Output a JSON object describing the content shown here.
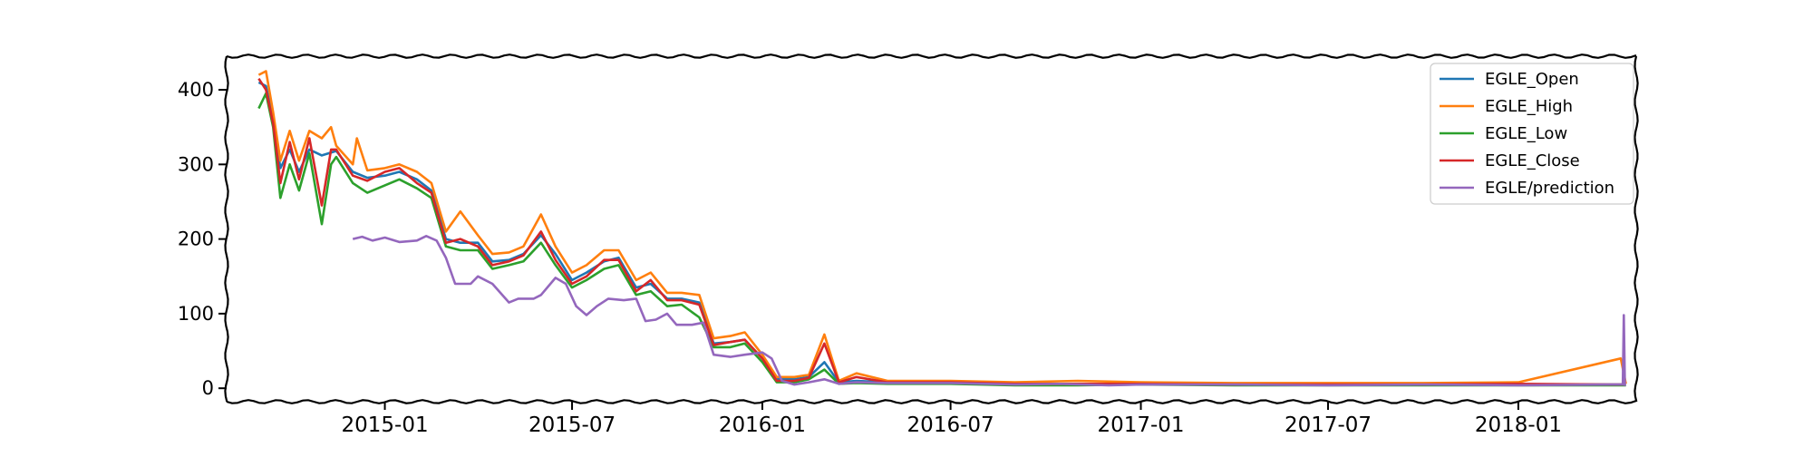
{
  "chart_data": {
    "type": "line",
    "title": "",
    "xlabel": "",
    "ylabel": "",
    "xlim": [
      "2014-08-01",
      "2018-04-25"
    ],
    "ylim": [
      -18,
      445
    ],
    "grid": false,
    "legend_position": "top-right",
    "x_ticks": [
      "2015-01",
      "2015-07",
      "2016-01",
      "2016-07",
      "2017-01",
      "2017-07",
      "2018-01"
    ],
    "y_ticks": [
      0,
      100,
      200,
      300,
      400
    ],
    "series": [
      {
        "name": "EGLE_Open",
        "color": "#1f77b4",
        "points": [
          [
            "2014-09-01",
            410
          ],
          [
            "2014-09-08",
            405
          ],
          [
            "2014-09-15",
            360
          ],
          [
            "2014-09-22",
            295
          ],
          [
            "2014-10-01",
            320
          ],
          [
            "2014-10-10",
            290
          ],
          [
            "2014-10-20",
            320
          ],
          [
            "2014-11-01",
            312
          ],
          [
            "2014-11-15",
            318
          ],
          [
            "2014-12-01",
            290
          ],
          [
            "2014-12-15",
            282
          ],
          [
            "2015-01-01",
            285
          ],
          [
            "2015-01-15",
            290
          ],
          [
            "2015-02-01",
            280
          ],
          [
            "2015-02-15",
            265
          ],
          [
            "2015-03-01",
            200
          ],
          [
            "2015-03-15",
            195
          ],
          [
            "2015-04-01",
            195
          ],
          [
            "2015-04-15",
            170
          ],
          [
            "2015-05-01",
            172
          ],
          [
            "2015-05-15",
            180
          ],
          [
            "2015-06-01",
            205
          ],
          [
            "2015-06-15",
            180
          ],
          [
            "2015-07-01",
            145
          ],
          [
            "2015-07-15",
            155
          ],
          [
            "2015-08-01",
            170
          ],
          [
            "2015-08-15",
            175
          ],
          [
            "2015-09-01",
            135
          ],
          [
            "2015-09-15",
            140
          ],
          [
            "2015-10-01",
            120
          ],
          [
            "2015-10-15",
            120
          ],
          [
            "2015-11-01",
            115
          ],
          [
            "2015-11-15",
            60
          ],
          [
            "2015-12-01",
            62
          ],
          [
            "2015-12-15",
            65
          ],
          [
            "2016-01-01",
            40
          ],
          [
            "2016-01-15",
            12
          ],
          [
            "2016-02-01",
            12
          ],
          [
            "2016-02-15",
            15
          ],
          [
            "2016-03-01",
            35
          ],
          [
            "2016-03-15",
            8
          ],
          [
            "2016-04-01",
            10
          ],
          [
            "2016-05-01",
            8
          ],
          [
            "2016-07-01",
            8
          ],
          [
            "2016-09-01",
            5
          ],
          [
            "2016-11-01",
            5
          ],
          [
            "2017-01-01",
            6
          ],
          [
            "2017-04-01",
            5
          ],
          [
            "2017-07-01",
            5
          ],
          [
            "2017-10-01",
            5
          ],
          [
            "2018-01-01",
            5
          ],
          [
            "2018-04-10",
            5
          ],
          [
            "2018-04-15",
            5
          ]
        ]
      },
      {
        "name": "EGLE_High",
        "color": "#ff7f0e",
        "points": [
          [
            "2014-09-01",
            420
          ],
          [
            "2014-09-08",
            425
          ],
          [
            "2014-09-15",
            370
          ],
          [
            "2014-09-22",
            305
          ],
          [
            "2014-10-01",
            345
          ],
          [
            "2014-10-10",
            305
          ],
          [
            "2014-10-20",
            345
          ],
          [
            "2014-11-01",
            335
          ],
          [
            "2014-11-10",
            350
          ],
          [
            "2014-11-15",
            325
          ],
          [
            "2014-12-01",
            300
          ],
          [
            "2014-12-05",
            335
          ],
          [
            "2014-12-15",
            292
          ],
          [
            "2015-01-01",
            295
          ],
          [
            "2015-01-15",
            300
          ],
          [
            "2015-02-01",
            290
          ],
          [
            "2015-02-15",
            275
          ],
          [
            "2015-03-01",
            210
          ],
          [
            "2015-03-15",
            237
          ],
          [
            "2015-04-01",
            205
          ],
          [
            "2015-04-15",
            180
          ],
          [
            "2015-05-01",
            182
          ],
          [
            "2015-05-15",
            190
          ],
          [
            "2015-06-01",
            233
          ],
          [
            "2015-06-15",
            190
          ],
          [
            "2015-07-01",
            155
          ],
          [
            "2015-07-15",
            165
          ],
          [
            "2015-08-01",
            185
          ],
          [
            "2015-08-15",
            185
          ],
          [
            "2015-09-01",
            145
          ],
          [
            "2015-09-15",
            155
          ],
          [
            "2015-10-01",
            128
          ],
          [
            "2015-10-15",
            128
          ],
          [
            "2015-11-01",
            125
          ],
          [
            "2015-11-15",
            67
          ],
          [
            "2015-12-01",
            70
          ],
          [
            "2015-12-15",
            75
          ],
          [
            "2016-01-01",
            45
          ],
          [
            "2016-01-15",
            15
          ],
          [
            "2016-02-01",
            15
          ],
          [
            "2016-02-15",
            18
          ],
          [
            "2016-03-01",
            72
          ],
          [
            "2016-03-15",
            10
          ],
          [
            "2016-04-01",
            20
          ],
          [
            "2016-05-01",
            10
          ],
          [
            "2016-07-01",
            10
          ],
          [
            "2016-09-01",
            8
          ],
          [
            "2016-11-01",
            10
          ],
          [
            "2017-01-01",
            8
          ],
          [
            "2017-04-01",
            7
          ],
          [
            "2017-07-01",
            7
          ],
          [
            "2017-10-01",
            7
          ],
          [
            "2018-01-01",
            8
          ],
          [
            "2018-04-10",
            40
          ],
          [
            "2018-04-15",
            6
          ]
        ]
      },
      {
        "name": "EGLE_Low",
        "color": "#2ca02c",
        "points": [
          [
            "2014-09-01",
            375
          ],
          [
            "2014-09-08",
            395
          ],
          [
            "2014-09-15",
            350
          ],
          [
            "2014-09-22",
            255
          ],
          [
            "2014-10-01",
            300
          ],
          [
            "2014-10-10",
            265
          ],
          [
            "2014-10-20",
            315
          ],
          [
            "2014-11-01",
            220
          ],
          [
            "2014-11-10",
            300
          ],
          [
            "2014-11-15",
            310
          ],
          [
            "2014-12-01",
            275
          ],
          [
            "2014-12-15",
            262
          ],
          [
            "2015-01-01",
            272
          ],
          [
            "2015-01-15",
            280
          ],
          [
            "2015-02-01",
            268
          ],
          [
            "2015-02-15",
            255
          ],
          [
            "2015-03-01",
            190
          ],
          [
            "2015-03-15",
            185
          ],
          [
            "2015-04-01",
            185
          ],
          [
            "2015-04-15",
            160
          ],
          [
            "2015-05-01",
            165
          ],
          [
            "2015-05-15",
            170
          ],
          [
            "2015-06-01",
            195
          ],
          [
            "2015-06-15",
            165
          ],
          [
            "2015-07-01",
            135
          ],
          [
            "2015-07-15",
            145
          ],
          [
            "2015-08-01",
            160
          ],
          [
            "2015-08-15",
            165
          ],
          [
            "2015-09-01",
            125
          ],
          [
            "2015-09-15",
            130
          ],
          [
            "2015-10-01",
            110
          ],
          [
            "2015-10-15",
            112
          ],
          [
            "2015-11-01",
            95
          ],
          [
            "2015-11-15",
            55
          ],
          [
            "2015-12-01",
            55
          ],
          [
            "2015-12-15",
            60
          ],
          [
            "2016-01-01",
            35
          ],
          [
            "2016-01-15",
            8
          ],
          [
            "2016-02-01",
            8
          ],
          [
            "2016-02-15",
            12
          ],
          [
            "2016-03-01",
            25
          ],
          [
            "2016-03-15",
            6
          ],
          [
            "2016-04-01",
            7
          ],
          [
            "2016-05-01",
            6
          ],
          [
            "2016-07-01",
            6
          ],
          [
            "2016-09-01",
            4
          ],
          [
            "2016-11-01",
            4
          ],
          [
            "2017-01-01",
            5
          ],
          [
            "2017-04-01",
            4
          ],
          [
            "2017-07-01",
            4
          ],
          [
            "2017-10-01",
            4
          ],
          [
            "2018-01-01",
            4
          ],
          [
            "2018-04-10",
            4
          ],
          [
            "2018-04-15",
            4
          ]
        ]
      },
      {
        "name": "EGLE_Close",
        "color": "#d62728",
        "points": [
          [
            "2014-09-01",
            415
          ],
          [
            "2014-09-08",
            400
          ],
          [
            "2014-09-15",
            355
          ],
          [
            "2014-09-22",
            275
          ],
          [
            "2014-10-01",
            330
          ],
          [
            "2014-10-10",
            280
          ],
          [
            "2014-10-20",
            335
          ],
          [
            "2014-11-01",
            245
          ],
          [
            "2014-11-10",
            320
          ],
          [
            "2014-11-15",
            320
          ],
          [
            "2014-12-01",
            285
          ],
          [
            "2014-12-15",
            278
          ],
          [
            "2015-01-01",
            290
          ],
          [
            "2015-01-15",
            295
          ],
          [
            "2015-02-01",
            275
          ],
          [
            "2015-02-15",
            262
          ],
          [
            "2015-03-01",
            195
          ],
          [
            "2015-03-15",
            200
          ],
          [
            "2015-04-01",
            190
          ],
          [
            "2015-04-15",
            165
          ],
          [
            "2015-05-01",
            170
          ],
          [
            "2015-05-15",
            178
          ],
          [
            "2015-06-01",
            210
          ],
          [
            "2015-06-15",
            172
          ],
          [
            "2015-07-01",
            140
          ],
          [
            "2015-07-15",
            150
          ],
          [
            "2015-08-01",
            172
          ],
          [
            "2015-08-15",
            172
          ],
          [
            "2015-09-01",
            130
          ],
          [
            "2015-09-15",
            145
          ],
          [
            "2015-10-01",
            118
          ],
          [
            "2015-10-15",
            118
          ],
          [
            "2015-11-01",
            112
          ],
          [
            "2015-11-15",
            58
          ],
          [
            "2015-12-01",
            62
          ],
          [
            "2015-12-15",
            65
          ],
          [
            "2016-01-01",
            40
          ],
          [
            "2016-01-15",
            10
          ],
          [
            "2016-02-01",
            10
          ],
          [
            "2016-02-15",
            14
          ],
          [
            "2016-03-01",
            60
          ],
          [
            "2016-03-15",
            8
          ],
          [
            "2016-04-01",
            15
          ],
          [
            "2016-05-01",
            8
          ],
          [
            "2016-07-01",
            8
          ],
          [
            "2016-09-01",
            6
          ],
          [
            "2016-11-01",
            6
          ],
          [
            "2017-01-01",
            6
          ],
          [
            "2017-04-01",
            5
          ],
          [
            "2017-07-01",
            5
          ],
          [
            "2017-10-01",
            5
          ],
          [
            "2018-01-01",
            6
          ],
          [
            "2018-04-10",
            5
          ],
          [
            "2018-04-15",
            5
          ]
        ]
      },
      {
        "name": "EGLE/prediction",
        "color": "#9467bd",
        "points": [
          [
            "2014-12-01",
            200
          ],
          [
            "2014-12-10",
            203
          ],
          [
            "2014-12-20",
            198
          ],
          [
            "2015-01-01",
            202
          ],
          [
            "2015-01-15",
            196
          ],
          [
            "2015-02-01",
            198
          ],
          [
            "2015-02-10",
            204
          ],
          [
            "2015-02-20",
            198
          ],
          [
            "2015-03-01",
            175
          ],
          [
            "2015-03-10",
            140
          ],
          [
            "2015-03-25",
            140
          ],
          [
            "2015-04-01",
            150
          ],
          [
            "2015-04-15",
            140
          ],
          [
            "2015-05-01",
            115
          ],
          [
            "2015-05-10",
            120
          ],
          [
            "2015-05-25",
            120
          ],
          [
            "2015-06-01",
            125
          ],
          [
            "2015-06-15",
            148
          ],
          [
            "2015-06-25",
            140
          ],
          [
            "2015-07-05",
            110
          ],
          [
            "2015-07-15",
            98
          ],
          [
            "2015-07-25",
            110
          ],
          [
            "2015-08-05",
            120
          ],
          [
            "2015-08-20",
            118
          ],
          [
            "2015-09-01",
            120
          ],
          [
            "2015-09-10",
            90
          ],
          [
            "2015-09-20",
            92
          ],
          [
            "2015-10-01",
            100
          ],
          [
            "2015-10-10",
            85
          ],
          [
            "2015-10-25",
            85
          ],
          [
            "2015-11-05",
            88
          ],
          [
            "2015-11-15",
            45
          ],
          [
            "2015-12-01",
            42
          ],
          [
            "2015-12-15",
            45
          ],
          [
            "2016-01-01",
            48
          ],
          [
            "2016-01-10",
            40
          ],
          [
            "2016-01-20",
            10
          ],
          [
            "2016-02-01",
            5
          ],
          [
            "2016-02-15",
            8
          ],
          [
            "2016-03-01",
            12
          ],
          [
            "2016-03-15",
            6
          ],
          [
            "2016-04-01",
            8
          ],
          [
            "2016-05-01",
            7
          ],
          [
            "2016-07-01",
            7
          ],
          [
            "2016-09-01",
            5
          ],
          [
            "2016-10-15",
            6
          ],
          [
            "2016-12-01",
            4
          ],
          [
            "2017-01-01",
            5
          ],
          [
            "2017-04-01",
            5
          ],
          [
            "2017-07-01",
            4
          ],
          [
            "2017-10-01",
            5
          ],
          [
            "2018-01-01",
            4
          ],
          [
            "2018-04-01",
            5
          ],
          [
            "2018-04-12",
            5
          ],
          [
            "2018-04-13",
            98
          ],
          [
            "2018-04-14",
            3
          ]
        ]
      }
    ]
  }
}
